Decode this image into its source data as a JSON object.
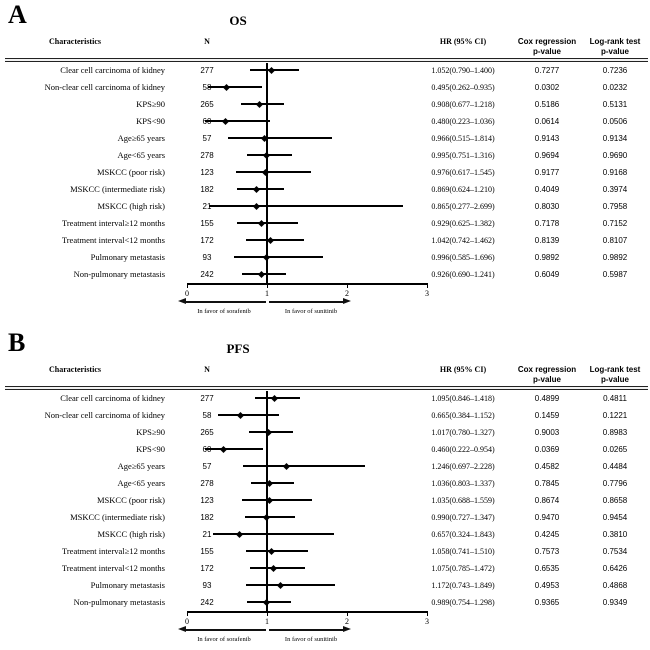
{
  "figure": {
    "background": "#ffffff",
    "marker_color": "#000000",
    "line_color": "#000000"
  },
  "chart_data": [
    {
      "type": "forest",
      "panel": "A",
      "title": "OS",
      "columns": {
        "characteristics": "Characteristics",
        "n": "N",
        "hr": "HR (95% CI)",
        "cox": [
          "Cox regression",
          "p-value"
        ],
        "logrank": [
          "Log-rank test",
          "p-value"
        ]
      },
      "x_axis": {
        "min": 0,
        "max": 3,
        "ticks": [
          "0",
          "1",
          "2",
          "3"
        ],
        "refline": 1
      },
      "favor_left": "In favor of sorafenib",
      "favor_right": "In favor of sunitinib",
      "rows": [
        {
          "characteristic": "Clear cell carcinoma of kidney",
          "n": "277",
          "hr": 1.052,
          "ci_low": 0.79,
          "ci_high": 1.4,
          "hr_ci": "1.052(0.790–1.400)",
          "cox_p": "0.7277",
          "logrank_p": "0.7236"
        },
        {
          "characteristic": "Non-clear cell carcinoma of kidney",
          "n": "58",
          "hr": 0.495,
          "ci_low": 0.262,
          "ci_high": 0.935,
          "hr_ci": "0.495(0.262–0.935)",
          "cox_p": "0.0302",
          "logrank_p": "0.0232"
        },
        {
          "characteristic": "KPS≥90",
          "n": "265",
          "hr": 0.908,
          "ci_low": 0.677,
          "ci_high": 1.218,
          "hr_ci": "0.908(0.677–1.218)",
          "cox_p": "0.5186",
          "logrank_p": "0.5131"
        },
        {
          "characteristic": "KPS<90",
          "n": "60",
          "hr": 0.48,
          "ci_low": 0.223,
          "ci_high": 1.036,
          "hr_ci": "0.480(0.223–1.036)",
          "cox_p": "0.0614",
          "logrank_p": "0.0506"
        },
        {
          "characteristic": "Age≥65 years",
          "n": "57",
          "hr": 0.966,
          "ci_low": 0.515,
          "ci_high": 1.814,
          "hr_ci": "0.966(0.515–1.814)",
          "cox_p": "0.9143",
          "logrank_p": "0.9134"
        },
        {
          "characteristic": "Age<65 years",
          "n": "278",
          "hr": 0.995,
          "ci_low": 0.751,
          "ci_high": 1.316,
          "hr_ci": "0.995(0.751–1.316)",
          "cox_p": "0.9694",
          "logrank_p": "0.9690"
        },
        {
          "characteristic": "MSKCC (poor risk)",
          "n": "123",
          "hr": 0.976,
          "ci_low": 0.617,
          "ci_high": 1.545,
          "hr_ci": "0.976(0.617–1.545)",
          "cox_p": "0.9177",
          "logrank_p": "0.9168"
        },
        {
          "characteristic": "MSKCC (intermediate risk)",
          "n": "182",
          "hr": 0.869,
          "ci_low": 0.624,
          "ci_high": 1.21,
          "hr_ci": "0.869(0.624–1.210)",
          "cox_p": "0.4049",
          "logrank_p": "0.3974"
        },
        {
          "characteristic": "MSKCC (high risk)",
          "n": "21",
          "hr": 0.865,
          "ci_low": 0.277,
          "ci_high": 2.699,
          "hr_ci": "0.865(0.277–2.699)",
          "cox_p": "0.8030",
          "logrank_p": "0.7958"
        },
        {
          "characteristic": "Treatment interval≥12 months",
          "n": "155",
          "hr": 0.929,
          "ci_low": 0.625,
          "ci_high": 1.382,
          "hr_ci": "0.929(0.625–1.382)",
          "cox_p": "0.7178",
          "logrank_p": "0.7152"
        },
        {
          "characteristic": "Treatment interval<12 months",
          "n": "172",
          "hr": 1.042,
          "ci_low": 0.742,
          "ci_high": 1.462,
          "hr_ci": "1.042(0.742–1.462)",
          "cox_p": "0.8139",
          "logrank_p": "0.8107"
        },
        {
          "characteristic": "Pulmonary metastasis",
          "n": "93",
          "hr": 0.996,
          "ci_low": 0.585,
          "ci_high": 1.696,
          "hr_ci": "0.996(0.585–1.696)",
          "cox_p": "0.9892",
          "logrank_p": "0.9892"
        },
        {
          "characteristic": "Non-pulmonary metastasis",
          "n": "242",
          "hr": 0.926,
          "ci_low": 0.69,
          "ci_high": 1.241,
          "hr_ci": "0.926(0.690–1.241)",
          "cox_p": "0.6049",
          "logrank_p": "0.5987"
        }
      ]
    },
    {
      "type": "forest",
      "panel": "B",
      "title": "PFS",
      "columns": {
        "characteristics": "Characteristics",
        "n": "N",
        "hr": "HR (95% CI)",
        "cox": [
          "Cox regression",
          "p-value"
        ],
        "logrank": [
          "Log-rank test",
          "p-value"
        ]
      },
      "x_axis": {
        "min": 0,
        "max": 3,
        "ticks": [
          "0",
          "1",
          "2",
          "3"
        ],
        "refline": 1
      },
      "favor_left": "In favor of sorafenib",
      "favor_right": "In favor of sunitinib",
      "rows": [
        {
          "characteristic": "Clear cell carcinoma of kidney",
          "n": "277",
          "hr": 1.095,
          "ci_low": 0.846,
          "ci_high": 1.418,
          "hr_ci": "1.095(0.846–1.418)",
          "cox_p": "0.4899",
          "logrank_p": "0.4811"
        },
        {
          "characteristic": "Non-clear cell carcinoma of kidney",
          "n": "58",
          "hr": 0.665,
          "ci_low": 0.384,
          "ci_high": 1.152,
          "hr_ci": "0.665(0.384–1.152)",
          "cox_p": "0.1459",
          "logrank_p": "0.1221"
        },
        {
          "characteristic": "KPS≥90",
          "n": "265",
          "hr": 1.017,
          "ci_low": 0.78,
          "ci_high": 1.327,
          "hr_ci": "1.017(0.780–1.327)",
          "cox_p": "0.9003",
          "logrank_p": "0.8983"
        },
        {
          "characteristic": "KPS<90",
          "n": "60",
          "hr": 0.46,
          "ci_low": 0.222,
          "ci_high": 0.954,
          "hr_ci": "0.460(0.222–0.954)",
          "cox_p": "0.0369",
          "logrank_p": "0.0265"
        },
        {
          "characteristic": "Age≥65 years",
          "n": "57",
          "hr": 1.246,
          "ci_low": 0.697,
          "ci_high": 2.228,
          "hr_ci": "1.246(0.697–2.228)",
          "cox_p": "0.4582",
          "logrank_p": "0.4484"
        },
        {
          "characteristic": "Age<65 years",
          "n": "278",
          "hr": 1.036,
          "ci_low": 0.803,
          "ci_high": 1.337,
          "hr_ci": "1.036(0.803–1.337)",
          "cox_p": "0.7845",
          "logrank_p": "0.7796"
        },
        {
          "characteristic": "MSKCC (poor risk)",
          "n": "123",
          "hr": 1.035,
          "ci_low": 0.688,
          "ci_high": 1.559,
          "hr_ci": "1.035(0.688–1.559)",
          "cox_p": "0.8674",
          "logrank_p": "0.8658"
        },
        {
          "characteristic": "MSKCC (intermediate risk)",
          "n": "182",
          "hr": 0.99,
          "ci_low": 0.727,
          "ci_high": 1.347,
          "hr_ci": "0.990(0.727–1.347)",
          "cox_p": "0.9470",
          "logrank_p": "0.9454"
        },
        {
          "characteristic": "MSKCC (high risk)",
          "n": "21",
          "hr": 0.657,
          "ci_low": 0.324,
          "ci_high": 1.843,
          "hr_ci": "0.657(0.324–1.843)",
          "cox_p": "0.4245",
          "logrank_p": "0.3810"
        },
        {
          "characteristic": "Treatment interval≥12 months",
          "n": "155",
          "hr": 1.058,
          "ci_low": 0.741,
          "ci_high": 1.51,
          "hr_ci": "1.058(0.741–1.510)",
          "cox_p": "0.7573",
          "logrank_p": "0.7534"
        },
        {
          "characteristic": "Treatment interval<12 months",
          "n": "172",
          "hr": 1.075,
          "ci_low": 0.785,
          "ci_high": 1.472,
          "hr_ci": "1.075(0.785–1.472)",
          "cox_p": "0.6535",
          "logrank_p": "0.6426"
        },
        {
          "characteristic": "Pulmonary metastasis",
          "n": "93",
          "hr": 1.172,
          "ci_low": 0.743,
          "ci_high": 1.849,
          "hr_ci": "1.172(0.743–1.849)",
          "cox_p": "0.4953",
          "logrank_p": "0.4868"
        },
        {
          "characteristic": "Non-pulmonary metastasis",
          "n": "242",
          "hr": 0.989,
          "ci_low": 0.754,
          "ci_high": 1.298,
          "hr_ci": "0.989(0.754–1.298)",
          "cox_p": "0.9365",
          "logrank_p": "0.9349"
        }
      ]
    }
  ]
}
